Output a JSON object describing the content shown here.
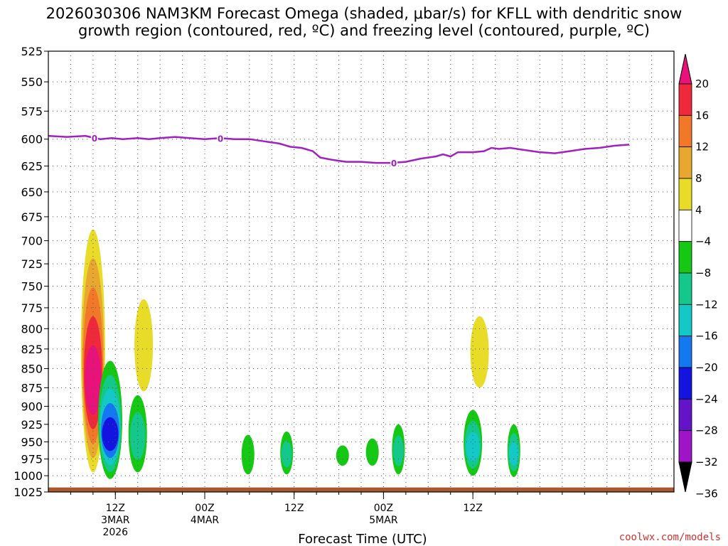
{
  "chart_data": {
    "type": "contour",
    "title_line1": "2026030306 NAM3KM Forecast Omega (shaded, μbar/s) for KFLL with dendritic snow",
    "title_line2": "growth region (contoured, red, ºC) and freezing level (contoured, purple, ºC)",
    "xlabel": "Forecast Time (UTC)",
    "ylabel": "",
    "y_ticks": [
      "525",
      "550",
      "575",
      "600",
      "625",
      "650",
      "675",
      "700",
      "725",
      "750",
      "775",
      "800",
      "825",
      "850",
      "875",
      "900",
      "925",
      "950",
      "975",
      "1000",
      "1025"
    ],
    "y_range_hPa": [
      525,
      1025
    ],
    "x_range_hours": [
      0,
      84
    ],
    "x_ticks": [
      {
        "hour": 9,
        "label": "12Z",
        "date": "3MAR",
        "year": "2026"
      },
      {
        "hour": 21,
        "label": "00Z",
        "date": "4MAR",
        "year": ""
      },
      {
        "hour": 33,
        "label": "12Z",
        "date": "",
        "year": ""
      },
      {
        "hour": 45,
        "label": "00Z",
        "date": "5MAR",
        "year": ""
      },
      {
        "hour": 57,
        "label": "12Z",
        "date": "",
        "year": ""
      }
    ],
    "colorbar": {
      "labels": [
        "20",
        "16",
        "12",
        "8",
        "4",
        "−4",
        "−8",
        "−12",
        "−16",
        "−20",
        "−24",
        "−28",
        "−32",
        "−36"
      ],
      "colors": [
        "#e8127a",
        "#f0283c",
        "#f07828",
        "#e8a830",
        "#e8dc28",
        "#ffffff",
        "#14c814",
        "#14c88c",
        "#14c8c8",
        "#1478f0",
        "#1414e0",
        "#6414c8",
        "#a014c8",
        "#a0a0a0"
      ]
    },
    "freezing_level": {
      "label": "0",
      "label_hours": [
        6.2,
        23.1,
        46.4
      ],
      "points": [
        [
          0,
          597
        ],
        [
          2.5,
          598
        ],
        [
          5,
          597
        ],
        [
          6.2,
          599
        ],
        [
          7,
          600
        ],
        [
          8.5,
          599
        ],
        [
          10,
          600
        ],
        [
          12,
          599
        ],
        [
          13.5,
          600
        ],
        [
          15,
          599
        ],
        [
          17,
          598
        ],
        [
          19,
          599
        ],
        [
          21,
          600
        ],
        [
          23,
          599
        ],
        [
          25,
          600
        ],
        [
          27,
          600
        ],
        [
          29,
          602
        ],
        [
          31,
          604
        ],
        [
          32.5,
          607
        ],
        [
          34,
          608
        ],
        [
          35.5,
          611
        ],
        [
          36.5,
          617
        ],
        [
          38,
          619
        ],
        [
          40,
          621
        ],
        [
          42,
          621
        ],
        [
          44,
          622
        ],
        [
          46,
          622
        ],
        [
          48,
          621
        ],
        [
          50,
          618
        ],
        [
          52,
          616
        ],
        [
          53,
          614
        ],
        [
          54,
          616
        ],
        [
          55,
          612
        ],
        [
          57,
          612
        ],
        [
          58.5,
          611
        ],
        [
          59.5,
          608
        ],
        [
          60.5,
          609
        ],
        [
          62,
          608
        ],
        [
          64,
          610
        ],
        [
          66,
          612
        ],
        [
          68,
          613
        ],
        [
          70,
          611
        ],
        [
          72,
          609
        ],
        [
          74,
          608
        ],
        [
          76,
          606
        ],
        [
          78,
          605
        ]
      ]
    },
    "omega_regions": [
      {
        "name": "ascent-core",
        "time_center": 6.0,
        "p_top": 688,
        "p_bottom": 995,
        "value_max": 20,
        "levels": [
          "#e8dc28",
          "#e8a830",
          "#f07828",
          "#f0283c",
          "#e8127a"
        ]
      },
      {
        "name": "descent-column",
        "time_center": 8.3,
        "p_top": 840,
        "p_bottom": 1005,
        "value_min": -24,
        "levels": [
          "#14c814",
          "#14c88c",
          "#14c8c8",
          "#1478f0",
          "#1414e0"
        ]
      },
      {
        "name": "descent-mid",
        "time_center": 12.0,
        "p_top": 885,
        "p_bottom": 995,
        "value_min": -12,
        "levels": [
          "#14c814",
          "#14c88c"
        ]
      },
      {
        "name": "ascent-thin",
        "time_center": 12.8,
        "p_top": 765,
        "p_bottom": 880,
        "value_max": 4,
        "levels": [
          "#e8dc28"
        ]
      },
      {
        "name": "descent-small",
        "time_center": 26.8,
        "p_top": 940,
        "p_bottom": 998,
        "value_min": -8,
        "levels": [
          "#14c814"
        ]
      },
      {
        "name": "descent-small",
        "time_center": 32.0,
        "p_top": 935,
        "p_bottom": 998,
        "value_min": -12,
        "levels": [
          "#14c814",
          "#14c88c"
        ]
      },
      {
        "name": "descent-patch",
        "time_center": 39.5,
        "p_top": 955,
        "p_bottom": 985,
        "value_min": -8,
        "levels": [
          "#14c814"
        ]
      },
      {
        "name": "descent-patch",
        "time_center": 43.5,
        "p_top": 945,
        "p_bottom": 985,
        "value_min": -8,
        "levels": [
          "#14c814"
        ]
      },
      {
        "name": "descent-cell",
        "time_center": 47.0,
        "p_top": 925,
        "p_bottom": 998,
        "value_min": -12,
        "levels": [
          "#14c814",
          "#14c88c"
        ]
      },
      {
        "name": "descent-cell",
        "time_center": 57.0,
        "p_top": 905,
        "p_bottom": 1000,
        "value_min": -16,
        "levels": [
          "#14c814",
          "#14c88c",
          "#14c8c8"
        ]
      },
      {
        "name": "ascent-small",
        "time_center": 57.9,
        "p_top": 785,
        "p_bottom": 875,
        "value_max": 4,
        "levels": [
          "#e8dc28"
        ]
      },
      {
        "name": "descent-cell",
        "time_center": 62.5,
        "p_top": 925,
        "p_bottom": 1002,
        "value_min": -16,
        "levels": [
          "#14c814",
          "#14c88c",
          "#14c8c8"
        ]
      }
    ],
    "ground": {
      "p_top": 1018,
      "color": "#a85a2e"
    }
  },
  "credit": "coolwx.com/models"
}
